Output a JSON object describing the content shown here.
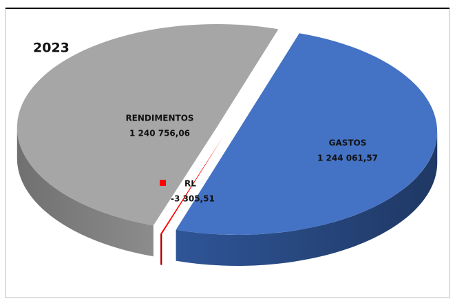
{
  "chart_data": {
    "type": "pie",
    "title": "2023",
    "categories": [
      "GASTOS",
      "RL",
      "RENDIMENTOS"
    ],
    "values": [
      1244061.57,
      -3305.51,
      1240756.06
    ],
    "value_labels": [
      "1 244 061,57",
      "-3 305,51",
      "1 240 756,06"
    ],
    "colors": [
      "#4472c4",
      "#ff0000",
      "#a6a6a6"
    ]
  }
}
